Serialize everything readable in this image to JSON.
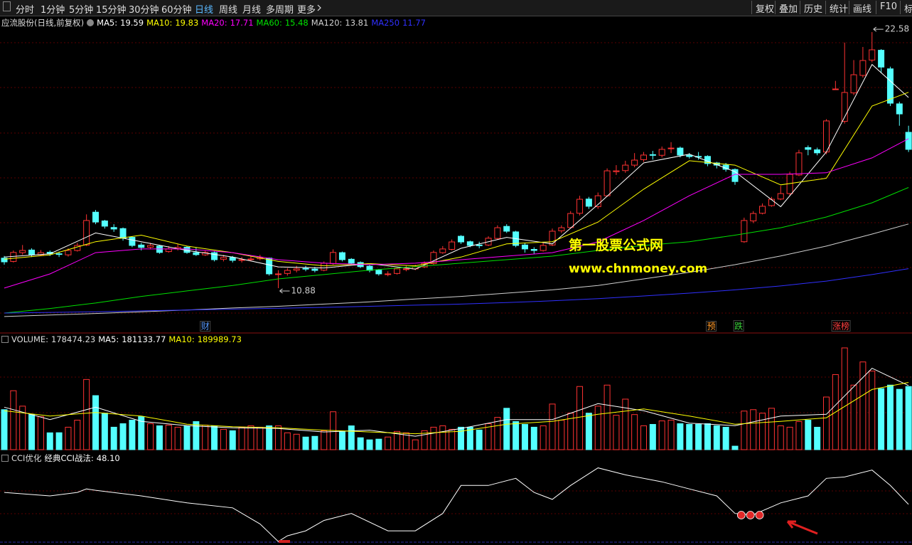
{
  "toolbar": {
    "left": [
      "分时",
      "1分钟",
      "5分钟",
      "15分钟",
      "30分钟",
      "60分钟",
      "日线",
      "周线",
      "月线",
      "多周期",
      "更多"
    ],
    "right": [
      "复权",
      "叠加",
      "历史",
      "统计",
      "画线",
      "F10",
      "标"
    ]
  },
  "chart_data": [
    {
      "type": "candlestick",
      "title": "应流股份(日线,前复权)",
      "ylim": [
        8.83,
        22.81
      ],
      "up_color": "#ff3232",
      "down_color": "#54ffff",
      "open": [
        12.25,
        12.1,
        12.5,
        12.62,
        12.4,
        12.52,
        12.45,
        12.4,
        12.6,
        12.85,
        14.35,
        13.95,
        13.65,
        13.6,
        13.2,
        12.85,
        12.75,
        12.8,
        12.55,
        12.68,
        12.75,
        12.5,
        12.4,
        12.5,
        12.2,
        12.28,
        12.15,
        12.18,
        12.22,
        12.25,
        11.5,
        11.55,
        11.7,
        11.78,
        11.75,
        11.7,
        12.0,
        12.5,
        12.2,
        12.05,
        11.88,
        11.7,
        11.5,
        11.55,
        11.75,
        11.76,
        11.85,
        12.0,
        12.5,
        12.65,
        13.25,
        13.0,
        12.85,
        12.85,
        13.15,
        13.7,
        13.45,
        12.85,
        12.65,
        12.6,
        12.85,
        13.5,
        13.65,
        14.3,
        14.95,
        14.6,
        15.1,
        16.2,
        16.25,
        16.5,
        16.75,
        16.98,
        16.95,
        17.25,
        17.28,
        16.95,
        16.9,
        16.9,
        16.6,
        16.5,
        16.3,
        13.0,
        13.95,
        14.3,
        14.65,
        14.95,
        15.2,
        16.05,
        17.3,
        17.2,
        17.1,
        19.95,
        18.5,
        19.8,
        20.6,
        21.3,
        21.75,
        20.9,
        19.3,
        18.0
      ],
      "high": [
        12.35,
        12.6,
        12.85,
        12.7,
        12.62,
        12.6,
        12.55,
        12.7,
        12.95,
        14.25,
        14.45,
        14.0,
        13.8,
        13.65,
        13.25,
        12.95,
        12.95,
        12.85,
        12.8,
        12.9,
        12.8,
        12.75,
        12.6,
        12.55,
        12.4,
        12.35,
        12.3,
        12.33,
        12.4,
        12.28,
        11.7,
        11.8,
        11.9,
        11.9,
        11.85,
        12.1,
        12.65,
        12.55,
        12.25,
        12.1,
        11.95,
        11.75,
        11.65,
        11.85,
        11.9,
        11.95,
        12.1,
        12.6,
        12.8,
        13.1,
        13.3,
        13.05,
        13.0,
        13.25,
        13.75,
        13.8,
        13.5,
        12.95,
        12.75,
        12.95,
        13.6,
        13.75,
        14.4,
        15.1,
        15.05,
        15.25,
        16.35,
        16.5,
        16.7,
        17.05,
        17.1,
        17.15,
        17.35,
        17.55,
        17.35,
        17.05,
        17.1,
        16.95,
        16.65,
        16.6,
        16.35,
        14.1,
        14.4,
        14.75,
        15.05,
        15.55,
        16.2,
        17.2,
        17.4,
        17.3,
        18.6,
        20.35,
        22.1,
        21.3,
        21.9,
        22.58,
        21.8,
        21.0,
        19.4,
        18.3
      ],
      "low": [
        11.95,
        12.05,
        12.4,
        12.3,
        12.35,
        12.35,
        12.3,
        12.32,
        12.55,
        12.8,
        13.8,
        13.6,
        13.45,
        13.05,
        12.75,
        12.6,
        12.65,
        12.45,
        12.5,
        12.6,
        12.45,
        12.35,
        12.35,
        12.1,
        12.1,
        12.05,
        12.05,
        12.1,
        12.15,
        11.45,
        10.88,
        11.45,
        11.6,
        11.65,
        11.6,
        11.65,
        11.95,
        12.1,
        11.95,
        11.8,
        11.6,
        11.45,
        11.42,
        11.5,
        11.65,
        11.7,
        11.8,
        11.95,
        12.45,
        12.6,
        12.9,
        12.75,
        12.7,
        12.8,
        13.1,
        13.4,
        12.75,
        12.5,
        12.45,
        12.55,
        12.8,
        13.4,
        13.6,
        14.2,
        14.5,
        14.5,
        15.05,
        16.05,
        16.15,
        16.4,
        16.65,
        16.75,
        16.85,
        17.05,
        16.85,
        16.8,
        16.75,
        16.45,
        16.35,
        16.2,
        15.6,
        12.95,
        13.85,
        14.25,
        14.6,
        14.9,
        15.1,
        16.0,
        16.95,
        16.95,
        17.0,
        19.95,
        18.4,
        19.7,
        20.5,
        21.2,
        20.7,
        19.2,
        18.3,
        17.1
      ],
      "close": [
        12.08,
        12.51,
        12.6,
        12.41,
        12.5,
        12.45,
        12.42,
        12.6,
        12.83,
        13.97,
        13.9,
        13.71,
        13.58,
        13.16,
        12.83,
        12.74,
        12.83,
        12.51,
        12.67,
        12.74,
        12.51,
        12.41,
        12.51,
        12.18,
        12.28,
        12.15,
        12.18,
        12.21,
        12.28,
        11.53,
        11.53,
        11.69,
        11.76,
        11.76,
        11.69,
        12.02,
        12.51,
        12.18,
        12.02,
        11.86,
        11.69,
        11.53,
        11.53,
        11.76,
        11.76,
        11.86,
        12.02,
        12.51,
        12.67,
        12.99,
        12.99,
        12.83,
        12.83,
        13.16,
        13.64,
        13.48,
        12.83,
        12.67,
        12.6,
        12.83,
        13.48,
        13.64,
        14.29,
        14.94,
        14.62,
        15.1,
        16.24,
        16.24,
        16.5,
        16.73,
        16.96,
        16.96,
        17.22,
        17.28,
        16.96,
        16.89,
        16.89,
        16.57,
        16.5,
        16.31,
        15.75,
        13.97,
        14.29,
        14.62,
        14.94,
        15.2,
        16.08,
        17.06,
        17.22,
        17.06,
        18.52,
        19.98,
        19.82,
        20.63,
        21.28,
        21.77,
        20.98,
        19.33,
        18.84,
        17.22
      ],
      "series": [
        {
          "name": "MA5:",
          "color": "#ffffff",
          "x": [
            0,
            5,
            10,
            15,
            20,
            25,
            30,
            35,
            40,
            45,
            50,
            55,
            60,
            65,
            70,
            75,
            80,
            85,
            90,
            95,
            99
          ],
          "values": [
            12.3,
            12.45,
            13.4,
            13.0,
            12.6,
            12.3,
            11.85,
            11.8,
            12.0,
            11.75,
            12.7,
            13.2,
            12.9,
            14.7,
            16.6,
            17.0,
            16.2,
            14.6,
            17.1,
            21.1,
            19.59
          ]
        },
        {
          "name": "MA10:",
          "color": "#ffff00",
          "x": [
            0,
            5,
            10,
            15,
            20,
            25,
            30,
            35,
            40,
            45,
            50,
            55,
            60,
            65,
            70,
            75,
            80,
            85,
            90,
            95,
            99
          ],
          "values": [
            12.2,
            12.4,
            13.0,
            13.3,
            12.8,
            12.5,
            12.1,
            11.9,
            12.0,
            11.9,
            12.3,
            12.9,
            13.0,
            13.9,
            15.4,
            16.7,
            16.5,
            15.6,
            15.9,
            19.2,
            19.83
          ]
        },
        {
          "name": "MA20:",
          "color": "#ff00ff",
          "x": [
            0,
            5,
            10,
            15,
            20,
            25,
            30,
            35,
            40,
            45,
            50,
            55,
            60,
            65,
            70,
            75,
            80,
            85,
            90,
            95,
            99
          ],
          "values": [
            10.88,
            11.53,
            12.5,
            12.67,
            12.67,
            12.5,
            12.18,
            12.02,
            11.95,
            12.02,
            12.18,
            12.34,
            12.5,
            12.99,
            13.97,
            15.1,
            16.08,
            16.08,
            16.15,
            16.83,
            17.71
          ]
        },
        {
          "name": "MA60:",
          "color": "#00e000",
          "x": [
            0,
            5,
            10,
            15,
            20,
            25,
            30,
            35,
            40,
            45,
            50,
            55,
            60,
            65,
            70,
            75,
            80,
            85,
            90,
            95,
            99
          ],
          "values": [
            9.74,
            9.95,
            10.2,
            10.5,
            10.75,
            11.0,
            11.3,
            11.5,
            11.7,
            11.86,
            12.02,
            12.18,
            12.34,
            12.6,
            12.83,
            13.0,
            13.3,
            13.64,
            14.13,
            14.78,
            15.48
          ]
        },
        {
          "name": "MA120:",
          "color": "#d0d0d0",
          "x": [
            0,
            5,
            10,
            15,
            20,
            25,
            30,
            35,
            40,
            45,
            50,
            55,
            60,
            65,
            70,
            75,
            80,
            85,
            90,
            95,
            99
          ],
          "values": [
            9.58,
            9.65,
            9.72,
            9.8,
            9.88,
            9.97,
            10.05,
            10.15,
            10.25,
            10.38,
            10.5,
            10.65,
            10.8,
            11.0,
            11.3,
            11.6,
            11.95,
            12.35,
            12.8,
            13.35,
            13.81
          ]
        },
        {
          "name": "MA250",
          "color": "#3030ff",
          "x": [
            0,
            5,
            10,
            15,
            20,
            25,
            30,
            35,
            40,
            45,
            50,
            55,
            60,
            65,
            70,
            75,
            80,
            85,
            90,
            95,
            99
          ],
          "values": [
            9.74,
            9.77,
            9.8,
            9.84,
            9.88,
            9.92,
            9.96,
            10.0,
            10.05,
            10.1,
            10.15,
            10.22,
            10.3,
            10.4,
            10.52,
            10.65,
            10.8,
            10.98,
            11.2,
            11.5,
            11.77
          ]
        }
      ],
      "events": [
        {
          "label": "财",
          "x": 22,
          "color": "#5a9cff"
        },
        {
          "label": "预",
          "x": 77.4,
          "color": "#ff9a2a"
        },
        {
          "label": "跌",
          "x": 80.4,
          "color": "#3ad03a"
        },
        {
          "label": "涨榜",
          "x": 91.6,
          "color": "#ff4040"
        }
      ]
    },
    {
      "type": "bar",
      "title": "VOLUME:",
      "ylim": [
        0,
        293500
      ],
      "values": [
        113031,
        166572,
        122946,
        99150,
        93201,
        47592,
        47850,
        63456,
        83286,
        198300,
        152691,
        103116,
        63500,
        73371,
        83300,
        93200,
        73400,
        67422,
        69405,
        63460,
        67400,
        79320,
        69400,
        67500,
        57507,
        53541,
        63400,
        67430,
        63450,
        67420,
        67410,
        47600,
        43626,
        35694,
        37677,
        53540,
        107082,
        51558,
        67300,
        33711,
        27762,
        29745,
        35700,
        51560,
        47590,
        27760,
        53550,
        63470,
        67440,
        57510,
        63480,
        63490,
        55524,
        73380,
        91218,
        116997,
        79320,
        71388,
        63500,
        67450,
        128895,
        83290,
        103116,
        178470,
        103120,
        122950,
        182436,
        97167,
        142776,
        99150,
        67460,
        71390,
        81303,
        83280,
        73380,
        71380,
        71400,
        73370,
        67440,
        63440,
        9915,
        109065,
        113031,
        103110,
        117000,
        67430,
        63440,
        79320,
        83300,
        63420,
        148725,
        212181,
        287535,
        182440,
        247875,
        222096,
        172521,
        182450,
        170538,
        178474.23
      ],
      "series": [
        {
          "name": "MA5:",
          "color": "#ffffff",
          "x": [
            0,
            5,
            10,
            15,
            20,
            25,
            30,
            35,
            40,
            45,
            50,
            55,
            60,
            65,
            70,
            75,
            80,
            85,
            90,
            95,
            99
          ],
          "values": [
            120000,
            85000,
            120000,
            80000,
            68000,
            62000,
            60000,
            50000,
            55000,
            38000,
            60000,
            85000,
            85000,
            130000,
            110000,
            75000,
            68000,
            95000,
            100000,
            230000,
            181133.77
          ]
        },
        {
          "name": "MA10:",
          "color": "#ffff00",
          "x": [
            0,
            5,
            10,
            15,
            20,
            25,
            30,
            35,
            40,
            45,
            50,
            55,
            60,
            65,
            70,
            75,
            80,
            85,
            90,
            95,
            99
          ],
          "values": [
            110000,
            95000,
            105000,
            95000,
            72000,
            65000,
            62000,
            55000,
            50000,
            45000,
            52000,
            72000,
            80000,
            100000,
            115000,
            95000,
            72000,
            80000,
            90000,
            170000,
            189989.73
          ]
        }
      ]
    },
    {
      "type": "line",
      "title": "CCI优化",
      "ylim": [
        -126,
        241
      ],
      "series": [
        {
          "name": "经典CCI战法:",
          "color": "#ffffff",
          "value_label": "48.10",
          "x": [
            0,
            5,
            8,
            9,
            10,
            15,
            20,
            25,
            28,
            30,
            31,
            33,
            35,
            38,
            42,
            45,
            48,
            50,
            53,
            56,
            58,
            60,
            62,
            65,
            68,
            72,
            75,
            78,
            80,
            82,
            85,
            88,
            90,
            92,
            95,
            97,
            99
          ],
          "values": [
            103,
            87,
            103,
            119,
            113,
            87,
            55,
            32,
            -42,
            -123,
            -97,
            -74,
            -26,
            6,
            -74,
            -74,
            6,
            135,
            135,
            168,
            103,
            71,
            135,
            216,
            184,
            152,
            119,
            87,
            6,
            0,
            55,
            87,
            168,
            174,
            206,
            135,
            48.1
          ]
        }
      ]
    }
  ],
  "watermark": [
    "第一股票公式网",
    "www.chnmoney.com"
  ]
}
